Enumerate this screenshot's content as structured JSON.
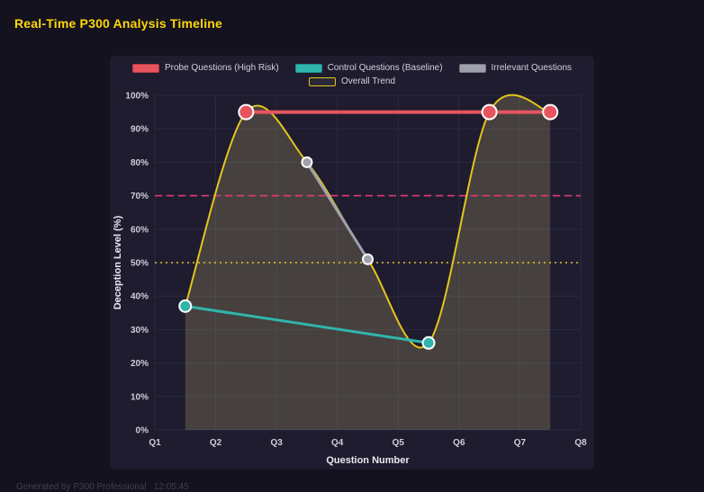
{
  "page": {
    "title": "Real-Time P300 Analysis Timeline",
    "title_color": "#ffd60a",
    "footer": "Generated by P300 Professional   12:05:45"
  },
  "chart_data": {
    "type": "line",
    "title": "Real-Time P300 Analysis Timeline",
    "xlabel": "Question Number",
    "ylabel": "Deception Level (%)",
    "x_ticks": [
      "Q1",
      "Q2",
      "Q3",
      "Q4",
      "Q5",
      "Q6",
      "Q7",
      "Q8"
    ],
    "x_range": [
      1,
      8
    ],
    "ylim": [
      0,
      100
    ],
    "y_tick_step": 10,
    "y_tick_suffix": "%",
    "grid": true,
    "grid_color": "#2b2942",
    "legend_position": "top",
    "series": [
      {
        "name": "Probe Questions (High Risk)",
        "color": "#e6555f",
        "swatch_fill": "#e6555f",
        "swatch_border": "#b93a46",
        "point_border": "#ffffff",
        "line_width": 4,
        "point_radius": 8,
        "legend_row": 0,
        "points": [
          {
            "x": 2.5,
            "y": 95
          },
          {
            "x": 6.5,
            "y": 95
          },
          {
            "x": 7.5,
            "y": 95
          }
        ]
      },
      {
        "name": "Control Questions (Baseline)",
        "color": "#30b5ac",
        "swatch_fill": "#30b5ac",
        "swatch_border": "#1f8f88",
        "point_border": "#ffffff",
        "line_width": 3,
        "point_radius": 6.5,
        "legend_row": 0,
        "points": [
          {
            "x": 1.5,
            "y": 37
          },
          {
            "x": 5.5,
            "y": 26
          }
        ]
      },
      {
        "name": "Irrelevant Questions",
        "color": "#9fa0ab",
        "swatch_fill": "#9fa0ab",
        "swatch_border": "#75767f",
        "point_border": "#ffffff",
        "line_width": 3,
        "point_radius": 5.5,
        "legend_row": 0,
        "points": [
          {
            "x": 3.5,
            "y": 80
          },
          {
            "x": 4.5,
            "y": 51
          }
        ]
      },
      {
        "name": "Overall Trend",
        "color": "#e3c41e",
        "swatch_fill": "#2a2838",
        "swatch_border": "#e3c41e",
        "point_border": "#ffffff",
        "line_width": 2,
        "point_radius": 0,
        "smooth": true,
        "fill_under": "rgba(214,196,122,0.22)",
        "legend_row": 1,
        "points": [
          {
            "x": 1.5,
            "y": 37
          },
          {
            "x": 2.5,
            "y": 95
          },
          {
            "x": 3.5,
            "y": 80
          },
          {
            "x": 4.5,
            "y": 51
          },
          {
            "x": 5.5,
            "y": 26
          },
          {
            "x": 6.5,
            "y": 95
          },
          {
            "x": 7.5,
            "y": 95
          }
        ]
      }
    ],
    "thresholds": [
      {
        "y": 70,
        "color": "#e23a78",
        "dash": "8 5"
      },
      {
        "y": 50,
        "color": "#e4c41e",
        "dash": "2 4"
      }
    ]
  }
}
